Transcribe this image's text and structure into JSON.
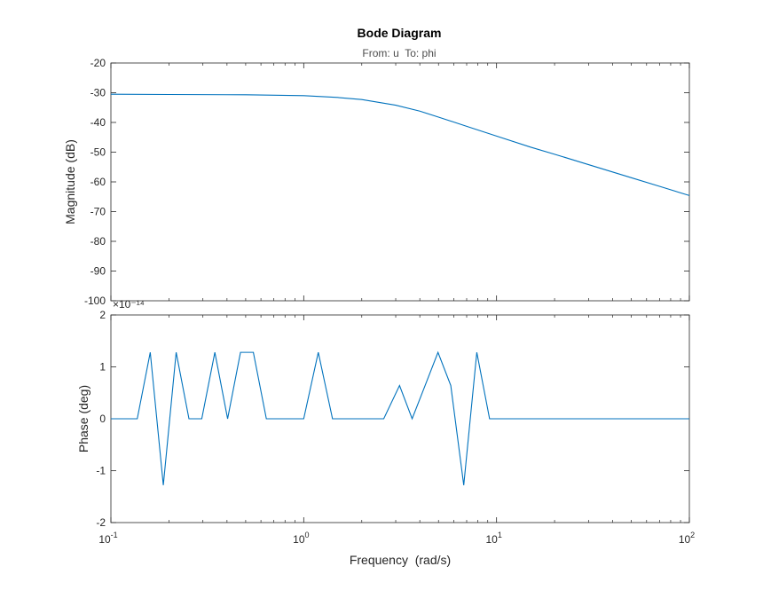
{
  "chart_data": {
    "type": "line",
    "title": "Bode Diagram",
    "subtitle": "From: u  To: phi",
    "xlabel": "Frequency  (rad/s)",
    "xscale": "log",
    "xlim": [
      0.1,
      100
    ],
    "x_ticks": [
      {
        "base": "10",
        "exp": "-1",
        "value": 0.1
      },
      {
        "base": "10",
        "exp": "0",
        "value": 1
      },
      {
        "base": "10",
        "exp": "1",
        "value": 10
      },
      {
        "base": "10",
        "exp": "2",
        "value": 100
      }
    ],
    "grid": false,
    "line_color": "#0072bd",
    "panels": [
      {
        "name": "magnitude",
        "ylabel": "Magnitude (dB)",
        "ylim": [
          -100,
          -20
        ],
        "y_ticks": [
          "-20",
          "-30",
          "-40",
          "-50",
          "-60",
          "-70",
          "-80",
          "-90",
          "-100"
        ],
        "y_tick_values": [
          -20,
          -30,
          -40,
          -50,
          -60,
          -70,
          -80,
          -90,
          -100
        ],
        "series": [
          {
            "x": [
              0.1,
              0.2,
              0.5,
              1,
              1.5,
              2,
              3,
              4,
              5,
              7,
              10,
              15,
              20,
              30,
              50,
              70,
              100
            ],
            "y": [
              -30.5,
              -30.6,
              -30.7,
              -31.0,
              -31.6,
              -32.3,
              -34.2,
              -36.2,
              -38.2,
              -41.3,
              -44.6,
              -48.3,
              -50.7,
              -54.2,
              -58.6,
              -61.5,
              -64.6
            ]
          }
        ]
      },
      {
        "name": "phase",
        "ylabel": "Phase (deg)",
        "y_exponent": "×10⁻¹⁴",
        "ylim": [
          -2,
          2
        ],
        "y_ticks": [
          "2",
          "1",
          "0",
          "-1",
          "-2"
        ],
        "y_tick_values": [
          2,
          1,
          0,
          -1,
          -2
        ],
        "series": [
          {
            "x": [
              0.1,
              0.137,
              0.16,
              0.187,
              0.218,
              0.254,
              0.296,
              0.346,
              0.403,
              0.47,
              0.548,
              0.64,
              0.746,
              0.87,
              1.0,
              1.19,
              1.41,
              1.64,
              1.91,
              2.23,
              2.6,
              3.14,
              3.65,
              4.26,
              4.97,
              5.79,
              6.76,
              7.9,
              9.2,
              10.7,
              12.5,
              14.6,
              17.0,
              100
            ],
            "y": [
              0,
              0,
              1.28,
              -1.28,
              1.28,
              0,
              0,
              1.28,
              0,
              1.28,
              1.28,
              0,
              0,
              0,
              0,
              1.28,
              0,
              0,
              0,
              0,
              0,
              0.64,
              0,
              0.64,
              1.28,
              0.64,
              -1.28,
              1.28,
              0,
              0,
              0,
              0,
              0,
              0
            ]
          }
        ]
      }
    ]
  }
}
